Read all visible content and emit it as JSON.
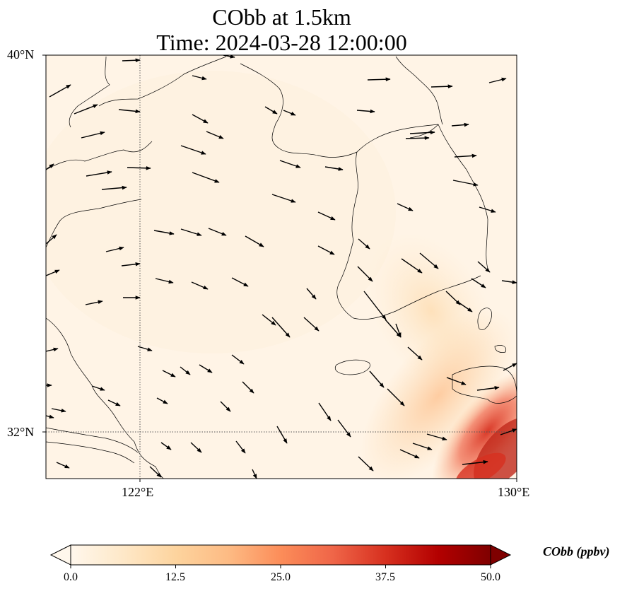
{
  "title": {
    "line1": "CObb at 1.5km",
    "line2": "Time: 2024-03-28 12:00:00"
  },
  "axes": {
    "lat_ticks": [
      "40°N",
      "32°N"
    ],
    "lon_ticks": [
      "122°E",
      "130°E"
    ],
    "lon_range": [
      120,
      130
    ],
    "lat_range": [
      31,
      40
    ],
    "gridlines": {
      "lon": 122,
      "lat": 32
    }
  },
  "colorbar": {
    "label": "CObb (ppbv)",
    "ticks": [
      "0.0",
      "12.5",
      "25.0",
      "37.5",
      "50.0"
    ],
    "range": [
      0,
      50
    ],
    "colormap": "OrRd",
    "colors": [
      "#fff7ec",
      "#fee8c8",
      "#fdd49e",
      "#fdbb84",
      "#fc8d59",
      "#ef6548",
      "#d7301f",
      "#b30000",
      "#7f0000"
    ]
  },
  "background_color": "#fff3e4",
  "wind_arrow_color": "#000000"
}
